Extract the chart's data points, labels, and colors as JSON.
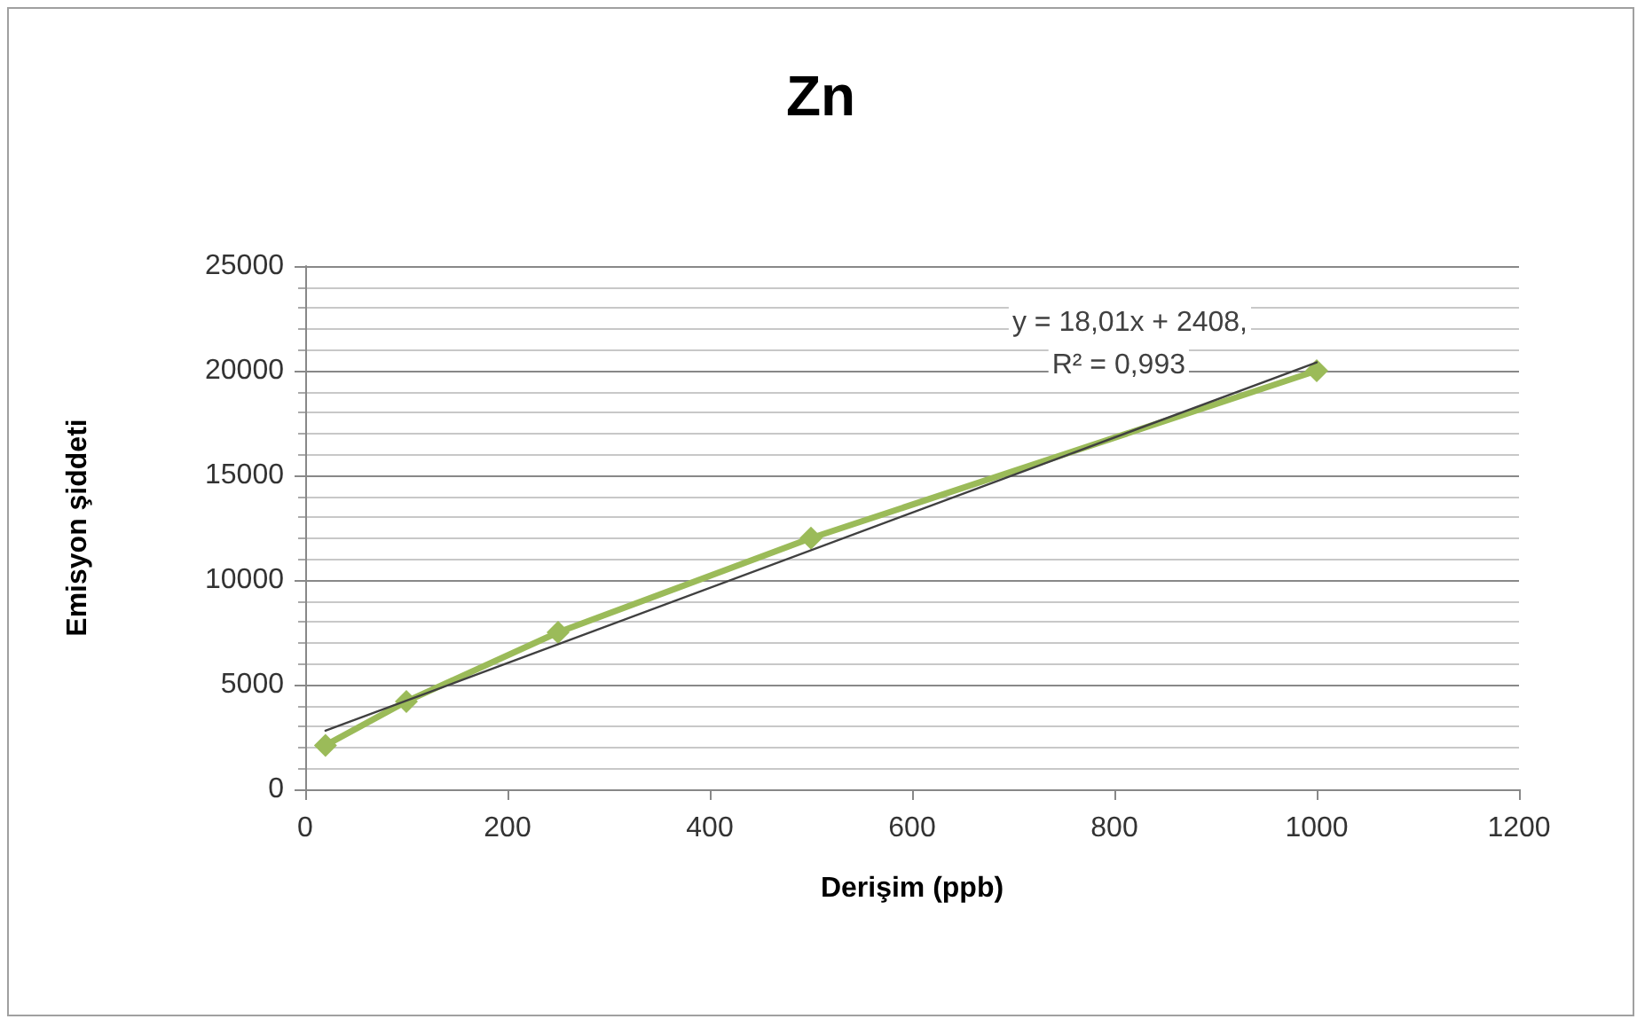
{
  "chart_data": {
    "type": "line",
    "title": "Zn",
    "xlabel": "Derişim (ppb)",
    "ylabel": "Emisyon şiddeti",
    "x": [
      20,
      100,
      250,
      500,
      1000
    ],
    "series": [
      {
        "color": "#9bbb59",
        "values": [
          2100,
          4200,
          7500,
          12000,
          20000
        ],
        "marker": "diamond"
      },
      {
        "color": "#404040",
        "x": [
          20,
          1000
        ],
        "values": [
          2800,
          20400
        ],
        "marker": "none"
      }
    ],
    "annotations": [
      "y = 18,01x + 2408,",
      "R² = 0,993"
    ],
    "xlim": [
      0,
      1200
    ],
    "xticks": [
      0,
      200,
      400,
      600,
      800,
      1000,
      1200
    ],
    "ylim": [
      0,
      25000
    ],
    "yticks": [
      0,
      5000,
      10000,
      15000,
      20000,
      25000
    ],
    "grid": "y"
  }
}
